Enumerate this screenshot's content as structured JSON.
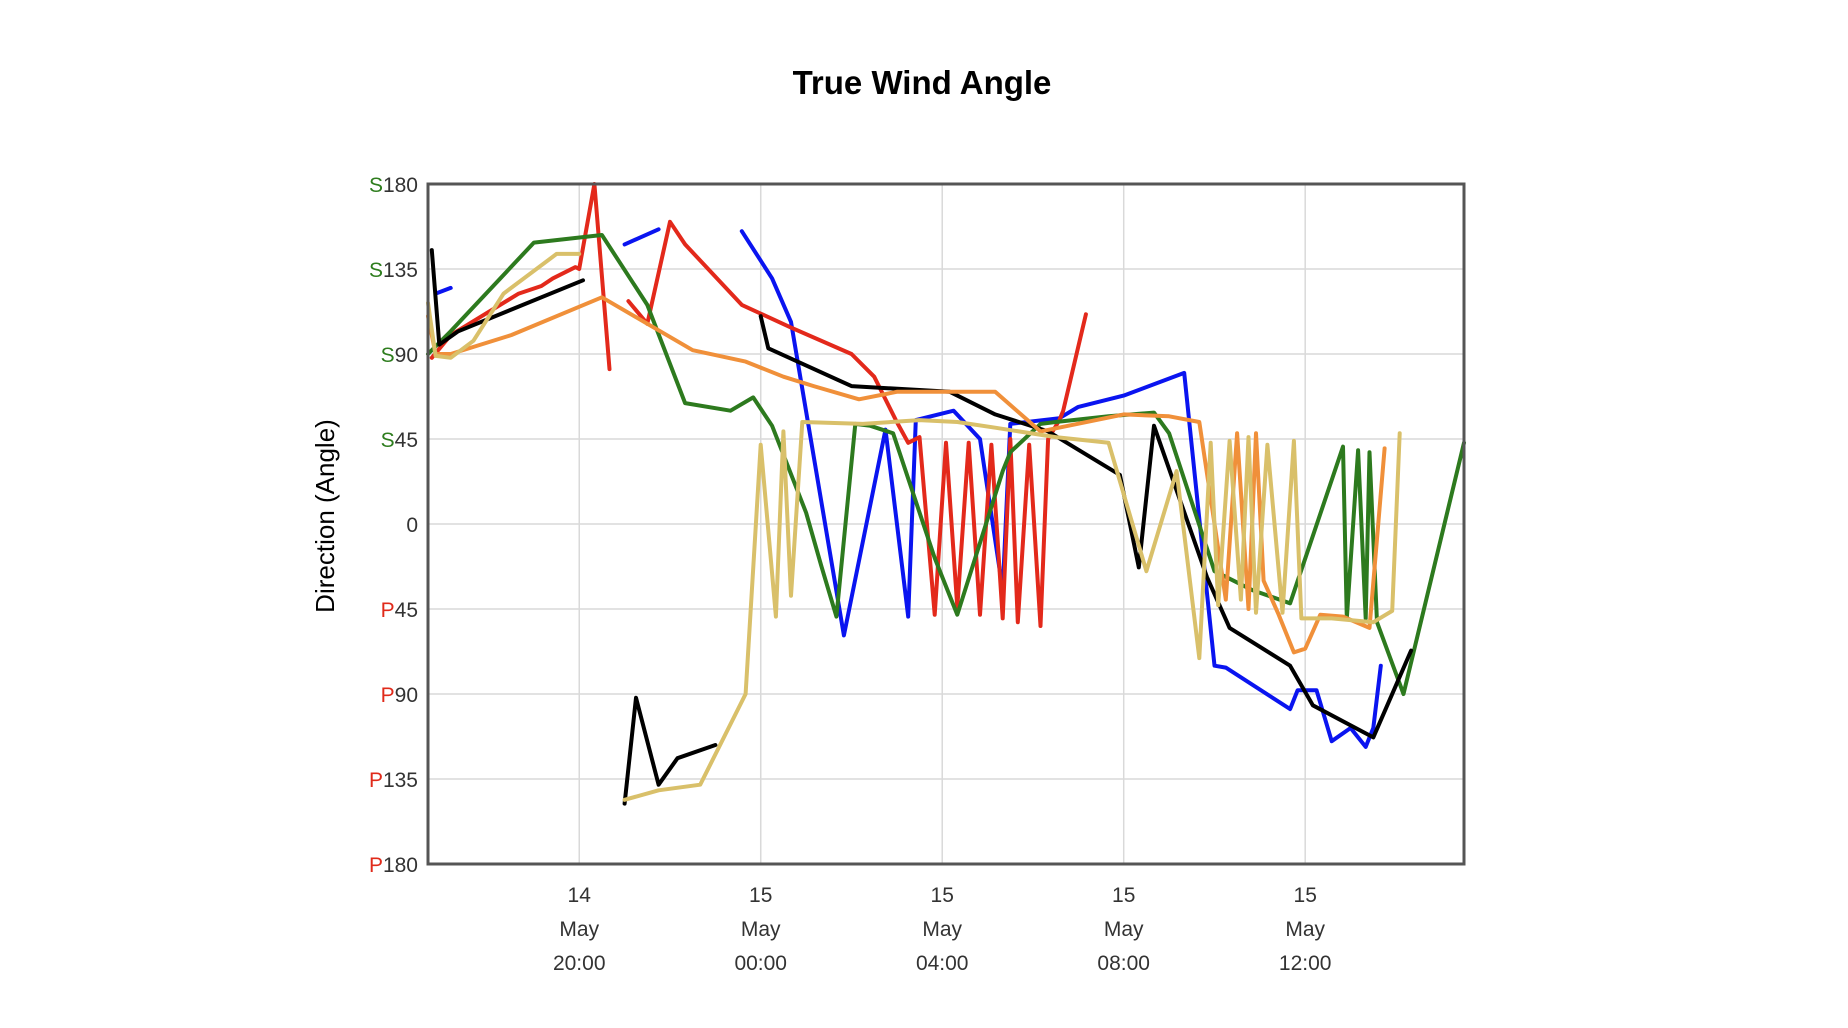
{
  "chart_data": {
    "type": "line",
    "title": "True Wind Angle",
    "ylabel": "Direction (Angle)",
    "xlabel": "",
    "ylim": [
      -180,
      180
    ],
    "xlim": [
      "14 May 16:40",
      "15 May 15:30"
    ],
    "grid": true,
    "legend": "none",
    "y_ticks": [
      {
        "value": 180,
        "prefix": "S",
        "num": "180",
        "prefix_color": "#2e7d1e"
      },
      {
        "value": 135,
        "prefix": "S",
        "num": "135",
        "prefix_color": "#2e7d1e"
      },
      {
        "value": 90,
        "prefix": "S",
        "num": "90",
        "prefix_color": "#2e7d1e"
      },
      {
        "value": 45,
        "prefix": "S",
        "num": "45",
        "prefix_color": "#2e7d1e"
      },
      {
        "value": 0,
        "prefix": "",
        "num": "0",
        "prefix_color": "#333333"
      },
      {
        "value": -45,
        "prefix": "P",
        "num": "45",
        "prefix_color": "#e02a1a"
      },
      {
        "value": -90,
        "prefix": "P",
        "num": "90",
        "prefix_color": "#e02a1a"
      },
      {
        "value": -135,
        "prefix": "P",
        "num": "135",
        "prefix_color": "#e02a1a"
      },
      {
        "value": -180,
        "prefix": "P",
        "num": "180",
        "prefix_color": "#e02a1a"
      }
    ],
    "x_ticks": [
      {
        "time": "14 May 20:00",
        "line1": "14",
        "line2": "May",
        "line3": "20:00"
      },
      {
        "time": "15 May 00:00",
        "line1": "15",
        "line2": "May",
        "line3": "00:00"
      },
      {
        "time": "15 May 04:00",
        "line1": "15",
        "line2": "May",
        "line3": "04:00"
      },
      {
        "time": "15 May 08:00",
        "line1": "15",
        "line2": "May",
        "line3": "08:00"
      },
      {
        "time": "15 May 12:00",
        "line1": "15",
        "line2": "May",
        "line3": "12:00"
      }
    ],
    "series": [
      {
        "color": "#0a14f0",
        "segments": [
          [
            [
              "14 May 16:50",
              122
            ],
            [
              "14 May 17:10",
              125
            ]
          ],
          [
            [
              "14 May 21:00",
              148
            ],
            [
              "14 May 21:45",
              156
            ]
          ],
          [
            [
              "14 May 23:35",
              155
            ],
            [
              "15 May 00:15",
              130
            ],
            [
              "15 May 00:40",
              107
            ],
            [
              "15 May 01:50",
              -59
            ],
            [
              "15 May 02:45",
              50
            ],
            [
              "15 May 03:15",
              -49
            ],
            [
              "15 May 03:25",
              55
            ],
            [
              "15 May 04:15",
              60
            ],
            [
              "15 May 04:50",
              45
            ],
            [
              "15 May 05:20",
              -35
            ],
            [
              "15 May 05:30",
              53
            ],
            [
              "15 May 06:35",
              56
            ],
            [
              "15 May 07:00",
              62
            ],
            [
              "15 May 08:00",
              68
            ],
            [
              "15 May 09:20",
              80
            ],
            [
              "15 May 10:00",
              -75
            ],
            [
              "15 May 10:15",
              -76
            ],
            [
              "15 May 11:40",
              -98
            ],
            [
              "15 May 11:50",
              -88
            ],
            [
              "15 May 12:15",
              -88
            ],
            [
              "15 May 12:35",
              -115
            ],
            [
              "15 May 13:00",
              -108
            ],
            [
              "15 May 13:20",
              -118
            ],
            [
              "15 May 13:30",
              -108
            ],
            [
              "15 May 13:40",
              -75
            ]
          ]
        ]
      },
      {
        "color": "#e3291b",
        "segments": [
          [
            [
              "14 May 16:45",
              88
            ],
            [
              "14 May 17:10",
              100
            ],
            [
              "14 May 18:40",
              122
            ],
            [
              "14 May 19:10",
              126
            ],
            [
              "14 May 19:25",
              130
            ],
            [
              "14 May 19:55",
              136
            ],
            [
              "14 May 20:00",
              135
            ],
            [
              "14 May 20:20",
              180
            ],
            [
              "14 May 20:40",
              82
            ]
          ],
          [
            [
              "14 May 21:05",
              118
            ],
            [
              "14 May 21:30",
              106
            ],
            [
              "14 May 22:00",
              160
            ],
            [
              "14 May 22:20",
              148
            ],
            [
              "14 May 23:35",
              116
            ],
            [
              "15 May 00:40",
              104
            ],
            [
              "15 May 02:00",
              90
            ],
            [
              "15 May 02:30",
              78
            ],
            [
              "15 May 03:00",
              54
            ],
            [
              "15 May 03:15",
              43
            ],
            [
              "15 May 03:30",
              46
            ],
            [
              "15 May 03:50",
              -48
            ],
            [
              "15 May 04:05",
              43
            ],
            [
              "15 May 04:20",
              -44
            ],
            [
              "15 May 04:35",
              43
            ],
            [
              "15 May 04:50",
              -48
            ],
            [
              "15 May 05:05",
              42
            ],
            [
              "15 May 05:20",
              -50
            ],
            [
              "15 May 05:30",
              45
            ],
            [
              "15 May 05:40",
              -52
            ],
            [
              "15 May 05:55",
              42
            ],
            [
              "15 May 06:10",
              -54
            ],
            [
              "15 May 06:20",
              45
            ],
            [
              "15 May 06:35",
              55
            ],
            [
              "15 May 06:40",
              60
            ],
            [
              "15 May 07:10",
              111
            ]
          ]
        ]
      },
      {
        "color": "#2d7a1e",
        "segments": [
          [
            [
              "14 May 16:40",
              90
            ],
            [
              "14 May 17:10",
              102
            ],
            [
              "14 May 19:00",
              149
            ],
            [
              "14 May 20:30",
              153
            ],
            [
              "14 May 21:30",
              116
            ],
            [
              "14 May 22:20",
              64
            ],
            [
              "14 May 23:20",
              60
            ],
            [
              "14 May 23:50",
              67
            ],
            [
              "15 May 00:15",
              52
            ],
            [
              "15 May 01:00",
              6
            ],
            [
              "15 May 01:20",
              -22
            ],
            [
              "15 May 01:40",
              -49
            ],
            [
              "15 May 02:05",
              53
            ],
            [
              "15 May 02:25",
              52
            ],
            [
              "15 May 02:55",
              48
            ],
            [
              "15 May 03:50",
              -18
            ],
            [
              "15 May 04:20",
              -48
            ],
            [
              "15 May 05:20",
              28
            ],
            [
              "15 May 05:30",
              38
            ],
            [
              "15 May 06:10",
              53
            ],
            [
              "15 May 06:30",
              54
            ],
            [
              "15 May 07:40",
              57
            ],
            [
              "15 May 08:40",
              59
            ],
            [
              "15 May 09:00",
              48
            ],
            [
              "15 May 10:00",
              -25
            ],
            [
              "15 May 10:50",
              -35
            ],
            [
              "15 May 11:40",
              -42
            ],
            [
              "15 May 12:50",
              41
            ],
            [
              "15 May 12:55",
              -50
            ],
            [
              "15 May 13:10",
              39
            ],
            [
              "15 May 13:20",
              -50
            ],
            [
              "15 May 13:25",
              38
            ],
            [
              "15 May 13:35",
              -52
            ],
            [
              "15 May 14:10",
              -90
            ],
            [
              "15 May 15:30",
              43
            ]
          ]
        ]
      },
      {
        "color": "#000000",
        "segments": [
          [
            [
              "14 May 16:45",
              145
            ],
            [
              "14 May 16:55",
              95
            ],
            [
              "14 May 17:20",
              102
            ],
            [
              "14 May 20:05",
              129
            ]
          ],
          [
            [
              "14 May 21:00",
              -148
            ],
            [
              "14 May 21:15",
              -92
            ],
            [
              "14 May 21:45",
              -138
            ],
            [
              "14 May 22:10",
              -124
            ],
            [
              "14 May 23:00",
              -117
            ]
          ],
          [
            [
              "15 May 00:00",
              110
            ],
            [
              "15 May 00:10",
              93
            ],
            [
              "15 May 01:05",
              83
            ],
            [
              "15 May 02:00",
              73
            ],
            [
              "15 May 04:10",
              70
            ],
            [
              "15 May 05:10",
              58
            ],
            [
              "15 May 06:20",
              49
            ],
            [
              "15 May 07:55",
              26
            ],
            [
              "15 May 08:20",
              -23
            ],
            [
              "15 May 08:40",
              52
            ],
            [
              "15 May 09:50",
              -28
            ],
            [
              "15 May 10:20",
              -55
            ],
            [
              "15 May 11:40",
              -75
            ],
            [
              "15 May 12:10",
              -96
            ],
            [
              "15 May 13:30",
              -113
            ],
            [
              "15 May 14:20",
              -67
            ]
          ]
        ]
      },
      {
        "color": "#f0903a",
        "segments": [
          [
            [
              "14 May 16:40",
              110
            ],
            [
              "14 May 16:50",
              90
            ],
            [
              "14 May 17:10",
              90
            ],
            [
              "14 May 18:30",
              100
            ],
            [
              "14 May 20:30",
              120
            ],
            [
              "14 May 22:30",
              92
            ],
            [
              "14 May 23:40",
              86
            ],
            [
              "15 May 00:30",
              78
            ],
            [
              "15 May 01:10",
              73
            ],
            [
              "15 May 02:10",
              66
            ],
            [
              "15 May 03:00",
              70
            ],
            [
              "15 May 04:10",
              70
            ],
            [
              "15 May 05:10",
              70
            ],
            [
              "15 May 06:10",
              49
            ],
            [
              "15 May 08:00",
              58
            ],
            [
              "15 May 09:00",
              57
            ],
            [
              "15 May 09:40",
              54
            ],
            [
              "15 May 10:15",
              -40
            ],
            [
              "15 May 10:30",
              48
            ],
            [
              "15 May 10:45",
              -45
            ],
            [
              "15 May 10:55",
              48
            ],
            [
              "15 May 11:05",
              -30
            ],
            [
              "15 May 11:25",
              -48
            ],
            [
              "15 May 11:45",
              -68
            ],
            [
              "15 May 12:00",
              -66
            ],
            [
              "15 May 12:20",
              -48
            ],
            [
              "15 May 12:50",
              -49
            ],
            [
              "15 May 13:25",
              -55
            ],
            [
              "15 May 13:45",
              40
            ]
          ]
        ]
      },
      {
        "color": "#d9c06a",
        "segments": [
          [
            [
              "14 May 16:40",
              117
            ],
            [
              "14 May 16:50",
              89
            ],
            [
              "14 May 17:10",
              88
            ],
            [
              "14 May 17:40",
              97
            ],
            [
              "14 May 18:20",
              122
            ],
            [
              "14 May 19:30",
              143
            ],
            [
              "14 May 20:00",
              143
            ]
          ],
          [
            [
              "14 May 21:00",
              -146
            ],
            [
              "14 May 21:45",
              -141
            ],
            [
              "14 May 22:40",
              -138
            ],
            [
              "14 May 23:40",
              -90
            ],
            [
              "15 May 00:00",
              42
            ],
            [
              "15 May 00:20",
              -49
            ],
            [
              "15 May 00:30",
              49
            ],
            [
              "15 May 00:40",
              -38
            ],
            [
              "15 May 00:55",
              54
            ],
            [
              "15 May 02:15",
              53
            ],
            [
              "15 May 03:30",
              55
            ],
            [
              "15 May 04:20",
              54
            ],
            [
              "15 May 05:10",
              51
            ],
            [
              "15 May 06:30",
              46
            ],
            [
              "15 May 07:40",
              43
            ],
            [
              "15 May 08:30",
              -25
            ],
            [
              "15 May 09:10",
              28
            ],
            [
              "15 May 09:40",
              -71
            ],
            [
              "15 May 09:55",
              43
            ],
            [
              "15 May 10:05",
              -43
            ],
            [
              "15 May 10:20",
              44
            ],
            [
              "15 May 10:35",
              -40
            ],
            [
              "15 May 10:45",
              46
            ],
            [
              "15 May 10:55",
              -47
            ],
            [
              "15 May 11:10",
              42
            ],
            [
              "15 May 11:30",
              -47
            ],
            [
              "15 May 11:45",
              44
            ],
            [
              "15 May 11:55",
              -50
            ],
            [
              "15 May 12:20",
              -50
            ],
            [
              "15 May 12:35",
              -50
            ],
            [
              "15 May 13:30",
              -52
            ],
            [
              "15 May 13:55",
              -46
            ],
            [
              "15 May 14:05",
              48
            ]
          ]
        ]
      }
    ]
  }
}
